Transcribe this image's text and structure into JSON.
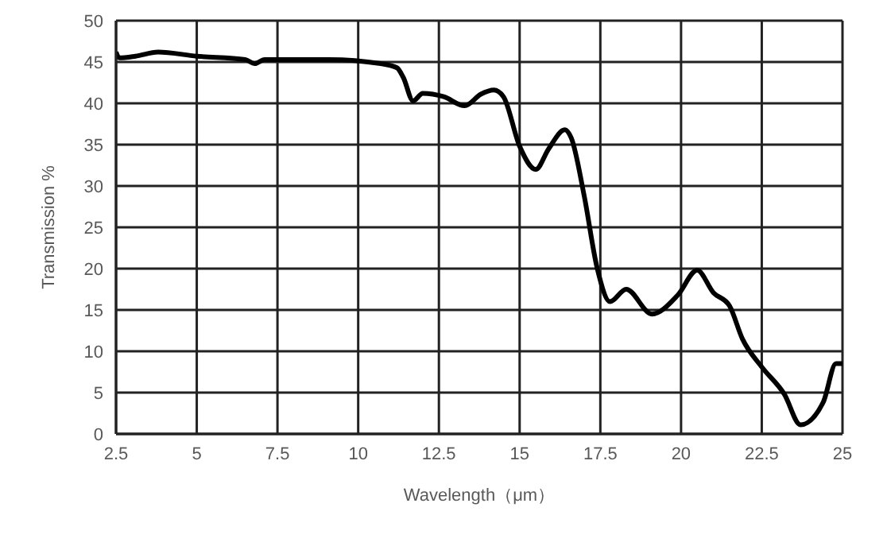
{
  "chart_data": {
    "type": "line",
    "xlabel": "Wavelength（μm）",
    "ylabel": "Transmission %",
    "series": [
      {
        "color": "#000000",
        "x": [
          2.5,
          2.6,
          3.1,
          3.8,
          5.0,
          6.5,
          6.8,
          7.1,
          9.1,
          10.7,
          11.2,
          11.4,
          11.7,
          12.0,
          12.65,
          13.3,
          13.8,
          14.2,
          14.5,
          15.0,
          15.5,
          15.9,
          16.4,
          16.6,
          17.0,
          17.4,
          17.8,
          18.3,
          19.1,
          19.9,
          20.5,
          21.0,
          21.5,
          21.9,
          22.5,
          23.2,
          23.7,
          24.4,
          24.8,
          25.0
        ],
        "values": [
          46.2,
          45.5,
          45.7,
          46.2,
          45.7,
          45.3,
          44.8,
          45.3,
          45.3,
          44.8,
          44.3,
          43.1,
          40.3,
          41.2,
          40.8,
          39.7,
          41.1,
          41.6,
          40.8,
          34.8,
          32.0,
          34.5,
          36.8,
          35.8,
          28.8,
          20.1,
          16.0,
          17.5,
          14.5,
          16.8,
          19.8,
          17.1,
          15.5,
          11.5,
          8.1,
          4.8,
          1.1,
          3.8,
          8.5,
          8.5
        ]
      }
    ],
    "xlim": [
      2.5,
      25
    ],
    "xticks": [
      2.5,
      5,
      7.5,
      10,
      12.5,
      15,
      17.5,
      20,
      22.5,
      25
    ],
    "ylim": [
      0,
      50
    ],
    "yticks": [
      0,
      5,
      10,
      15,
      20,
      25,
      30,
      35,
      40,
      45,
      50
    ],
    "grid": true,
    "marker": "none",
    "line_style": "solid"
  }
}
